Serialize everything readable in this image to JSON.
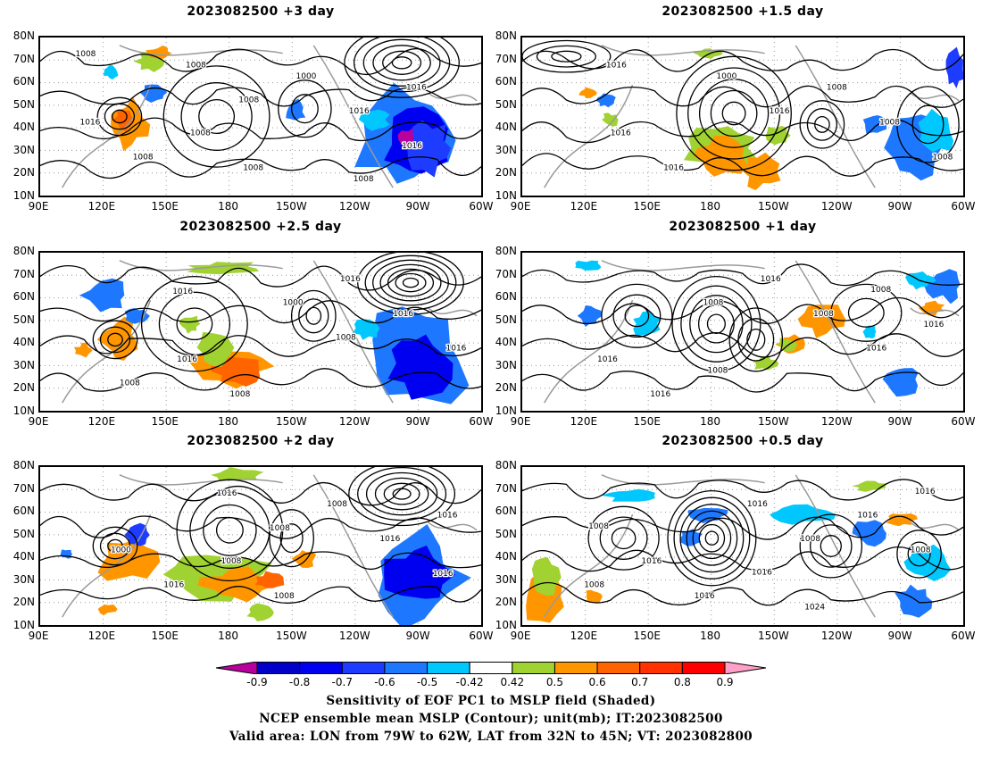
{
  "panels": [
    {
      "title": "2023082500  +3 day",
      "contour_labels": [
        "1008",
        "1008",
        "1016",
        "1008",
        "1016",
        "1008",
        "1000",
        "1016",
        "1008",
        "1016",
        "1008",
        "1008"
      ]
    },
    {
      "title": "2023082500  +1.5 day",
      "contour_labels": [
        "1016",
        "1016",
        "1008",
        "1000",
        "1008",
        "1016",
        "1008",
        "1016"
      ]
    },
    {
      "title": "2023082500  +2.5 day",
      "contour_labels": [
        "1016",
        "1008",
        "1008",
        "1000",
        "1016",
        "1008",
        "1016",
        "1016",
        "1016"
      ]
    },
    {
      "title": "2023082500  +1 day",
      "contour_labels": [
        "1008",
        "1016",
        "1016",
        "1008",
        "1016",
        "1016",
        "1016",
        "1008",
        "1008"
      ]
    },
    {
      "title": "2023082500  +2 day",
      "contour_labels": [
        "1008",
        "1016",
        "1016",
        "1016",
        "1016",
        "1008",
        "1000",
        "1008",
        "1016",
        "1008"
      ]
    },
    {
      "title": "2023082500  +0.5 day",
      "contour_labels": [
        "1008",
        "1008",
        "1016",
        "1008",
        "1016",
        "1016",
        "1016",
        "1024",
        "1008",
        "1016",
        "1016"
      ]
    }
  ],
  "axes": {
    "lat_labels": [
      "80N",
      "70N",
      "60N",
      "50N",
      "40N",
      "30N",
      "20N",
      "10N"
    ],
    "lon_labels": [
      "90E",
      "120E",
      "150E",
      "180",
      "150W",
      "120W",
      "90W",
      "60W"
    ]
  },
  "colorbar": {
    "ticks": [
      "-0.9",
      "-0.8",
      "-0.7",
      "-0.6",
      "-0.5",
      "-0.42",
      "0.42",
      "0.5",
      "0.6",
      "0.7",
      "0.8",
      "0.9"
    ],
    "colors": [
      "#b8009c",
      "#0000c8",
      "#0000f0",
      "#1e3cff",
      "#1e78ff",
      "#00c8ff",
      "#ffffff",
      "#a0d232",
      "#ff9600",
      "#ff6400",
      "#ff3200",
      "#ff0000",
      "#ffa0c8"
    ]
  },
  "caption": {
    "line1": "Sensitivity of EOF PC1 to MSLP field (Shaded)",
    "line2": "NCEP ensemble mean MSLP (Contour); unit(mb); IT:2023082500",
    "line3": "Valid area: LON from 79W to 62W, LAT from 32N to 45N; VT: 2023082800"
  }
}
